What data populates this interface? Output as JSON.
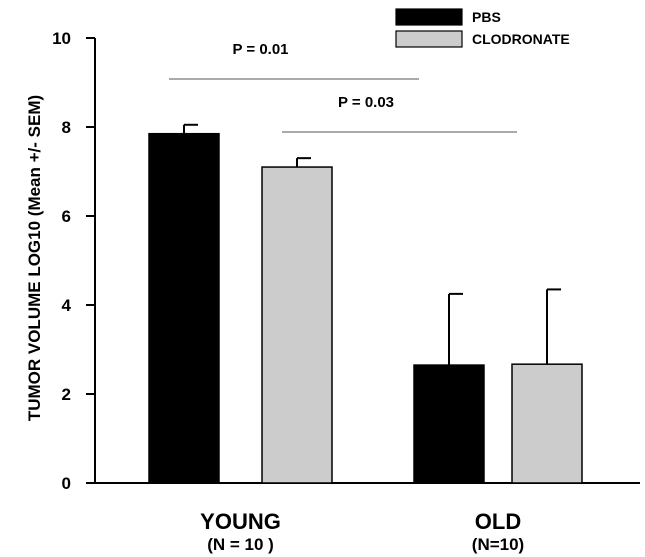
{
  "chart_data": {
    "type": "bar",
    "ylabel": "TUMOR VOLUME LOG10 (Mean +/- SEM)",
    "xlabel": "",
    "ylim": [
      0,
      10
    ],
    "yticks": [
      0,
      2,
      4,
      6,
      8,
      10
    ],
    "categories": [
      "YOUNG",
      "OLD"
    ],
    "category_sublabels": [
      "(N = 10 )",
      "(N=10)"
    ],
    "series": [
      {
        "name": "PBS",
        "color": "#000000",
        "values": [
          7.85,
          2.65
        ],
        "errors": [
          0.2,
          1.6
        ]
      },
      {
        "name": "CLODRONATE",
        "color": "#cccccc",
        "values": [
          7.1,
          2.67
        ],
        "errors": [
          0.2,
          1.68
        ]
      }
    ],
    "legend_position": "top-right",
    "grid": false,
    "annotations": [
      {
        "text": "P = 0.01",
        "from": "YOUNG / PBS",
        "to": "OLD / PBS"
      },
      {
        "text": "P = 0.03",
        "from": "YOUNG / CLODRONATE",
        "to": "OLD / CLODRONATE"
      }
    ]
  }
}
